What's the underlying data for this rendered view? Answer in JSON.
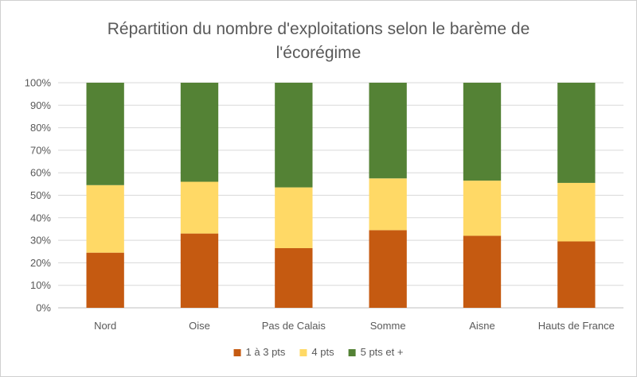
{
  "chart_data": {
    "type": "bar",
    "stacked": true,
    "percent_stacked": true,
    "title_lines": [
      "Répartition du nombre d'exploitations selon le barème de",
      "l'écorégime"
    ],
    "categories": [
      "Nord",
      "Oise",
      "Pas de Calais",
      "Somme",
      "Aisne",
      "Hauts de France"
    ],
    "y_ticks": [
      "0%",
      "10%",
      "20%",
      "30%",
      "40%",
      "50%",
      "60%",
      "70%",
      "80%",
      "90%",
      "100%"
    ],
    "ylim": [
      0,
      100
    ],
    "grid": true,
    "legend_position": "bottom",
    "series": [
      {
        "name": "1 à 3 pts",
        "color": "#c55a11",
        "values": [
          24.5,
          33,
          26.5,
          34.5,
          32,
          29.5
        ]
      },
      {
        "name": "4 pts",
        "color": "#ffd966",
        "values": [
          30,
          23,
          27,
          23,
          24.5,
          26
        ]
      },
      {
        "name": "5 pts et +",
        "color": "#548235",
        "values": [
          45.5,
          44,
          46.5,
          42.5,
          43.5,
          44.5
        ]
      }
    ]
  }
}
